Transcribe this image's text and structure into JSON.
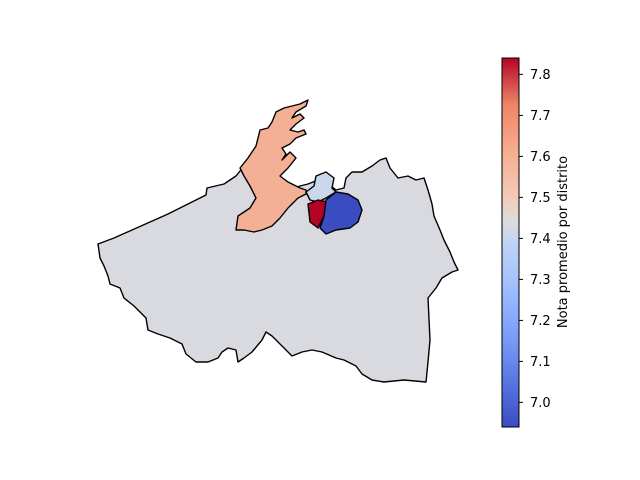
{
  "chart_data": {
    "type": "choropleth",
    "colormap": "coolwarm",
    "colorbar": {
      "label": "Nota promedio por distrito",
      "range": [
        6.94,
        7.84
      ],
      "ticks": [
        7.0,
        7.1,
        7.2,
        7.3,
        7.4,
        7.5,
        7.6,
        7.7,
        7.8
      ],
      "tick_labels": [
        "7.0",
        "7.1",
        "7.2",
        "7.3",
        "7.4",
        "7.5",
        "7.6",
        "7.7",
        "7.8"
      ],
      "orientation": "vertical",
      "position": "right"
    },
    "regions": [
      {
        "id": "main",
        "value": 7.4,
        "color": "#d8dadf"
      },
      {
        "id": "northwest-port",
        "value": 7.57,
        "color": "#f4b094"
      },
      {
        "id": "center-small",
        "value": 7.32,
        "color": "#cbd7ea"
      },
      {
        "id": "center-red",
        "value": 7.84,
        "color": "#b40426"
      },
      {
        "id": "center-blue",
        "value": 6.94,
        "color": "#3b4cc0"
      }
    ]
  }
}
